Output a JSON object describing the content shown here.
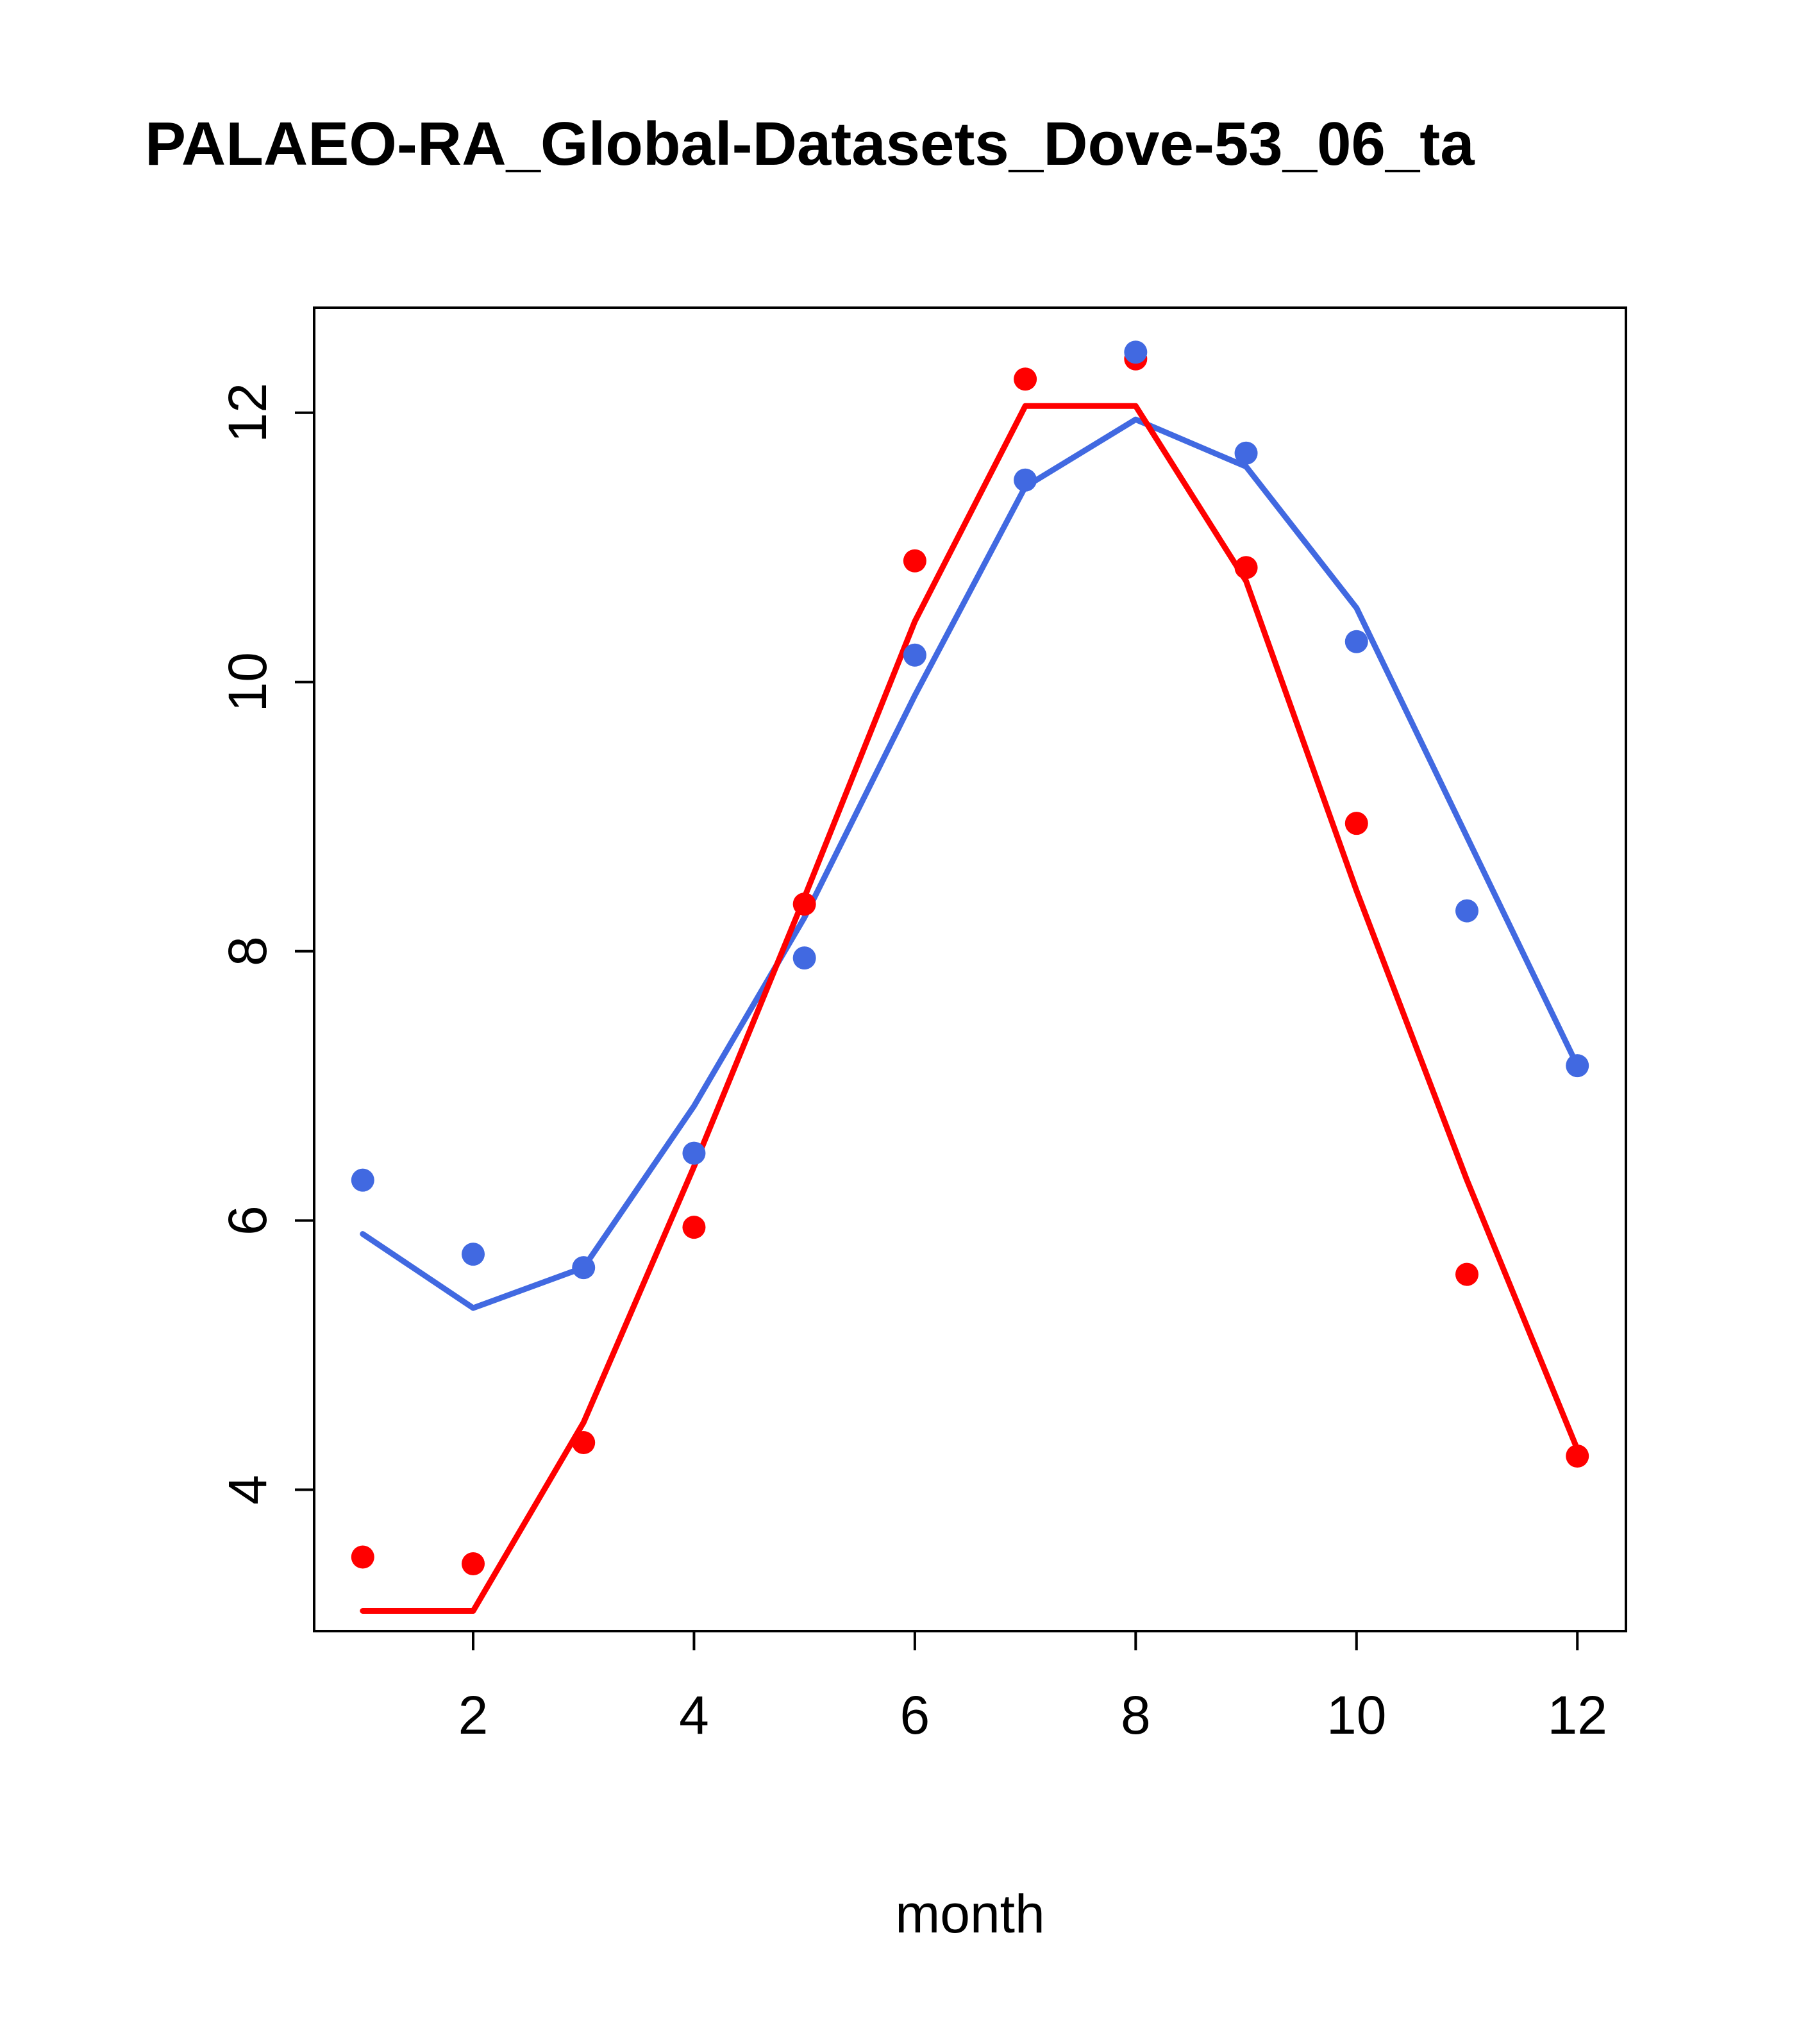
{
  "chart_data": {
    "type": "line",
    "title": "PALAEO-RA_Global-Datasets_Dove-53_06_ta",
    "xlabel": "month",
    "ylabel": "",
    "x": [
      1,
      2,
      3,
      4,
      5,
      6,
      7,
      8,
      9,
      10,
      11,
      12
    ],
    "xlim": [
      0.56,
      12.44
    ],
    "ylim": [
      2.95,
      12.78
    ],
    "x_ticks": [
      2,
      4,
      6,
      8,
      10,
      12
    ],
    "y_ticks": [
      4,
      6,
      8,
      10,
      12
    ],
    "grid": false,
    "legend": "none",
    "colors": {
      "red": "#FF0000",
      "blue": "#4169E1",
      "axis": "#000000",
      "background": "#FFFFFF"
    },
    "series": [
      {
        "name": "blue-line",
        "style": "line",
        "color": "#4169E1",
        "values": [
          5.9,
          5.35,
          5.65,
          6.85,
          8.25,
          9.9,
          11.45,
          11.95,
          11.6,
          10.55,
          8.85,
          7.15
        ]
      },
      {
        "name": "red-line",
        "style": "line",
        "color": "#FF0000",
        "values": [
          3.1,
          3.1,
          4.5,
          6.4,
          8.4,
          10.45,
          12.05,
          12.05,
          10.75,
          8.45,
          6.3,
          4.3
        ]
      },
      {
        "name": "red-points",
        "style": "points",
        "color": "#FF0000",
        "values": [
          3.5,
          3.45,
          4.35,
          5.95,
          8.35,
          10.9,
          12.25,
          12.4,
          10.85,
          8.95,
          5.6,
          4.25
        ]
      },
      {
        "name": "blue-points",
        "style": "points",
        "color": "#4169E1",
        "values": [
          6.3,
          5.75,
          5.65,
          6.5,
          7.95,
          10.2,
          11.5,
          12.45,
          11.7,
          10.3,
          8.3,
          7.15
        ]
      }
    ]
  }
}
